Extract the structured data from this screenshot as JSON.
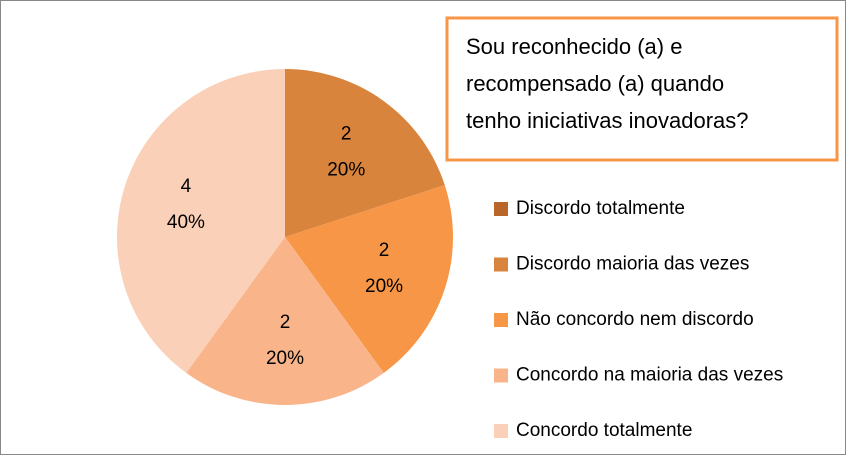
{
  "chart_data": {
    "type": "pie",
    "title": [
      "Sou reconhecido (a) e",
      "recompensado (a) quando",
      "tenho iniciativas inovadoras?"
    ],
    "categories": [
      "Discordo totalmente",
      "Discordo maioria das vezes",
      "Não concordo nem discordo",
      "Concordo na maioria das vezes",
      "Concordo totalmente"
    ],
    "values": [
      0,
      2,
      2,
      2,
      4
    ],
    "percent_labels": [
      null,
      "20%",
      "20%",
      "20%",
      "40%"
    ],
    "colors": [
      "#b9662b",
      "#d9843c",
      "#f79646",
      "#f9b48a",
      "#fbd0b8"
    ],
    "legend": "right"
  }
}
